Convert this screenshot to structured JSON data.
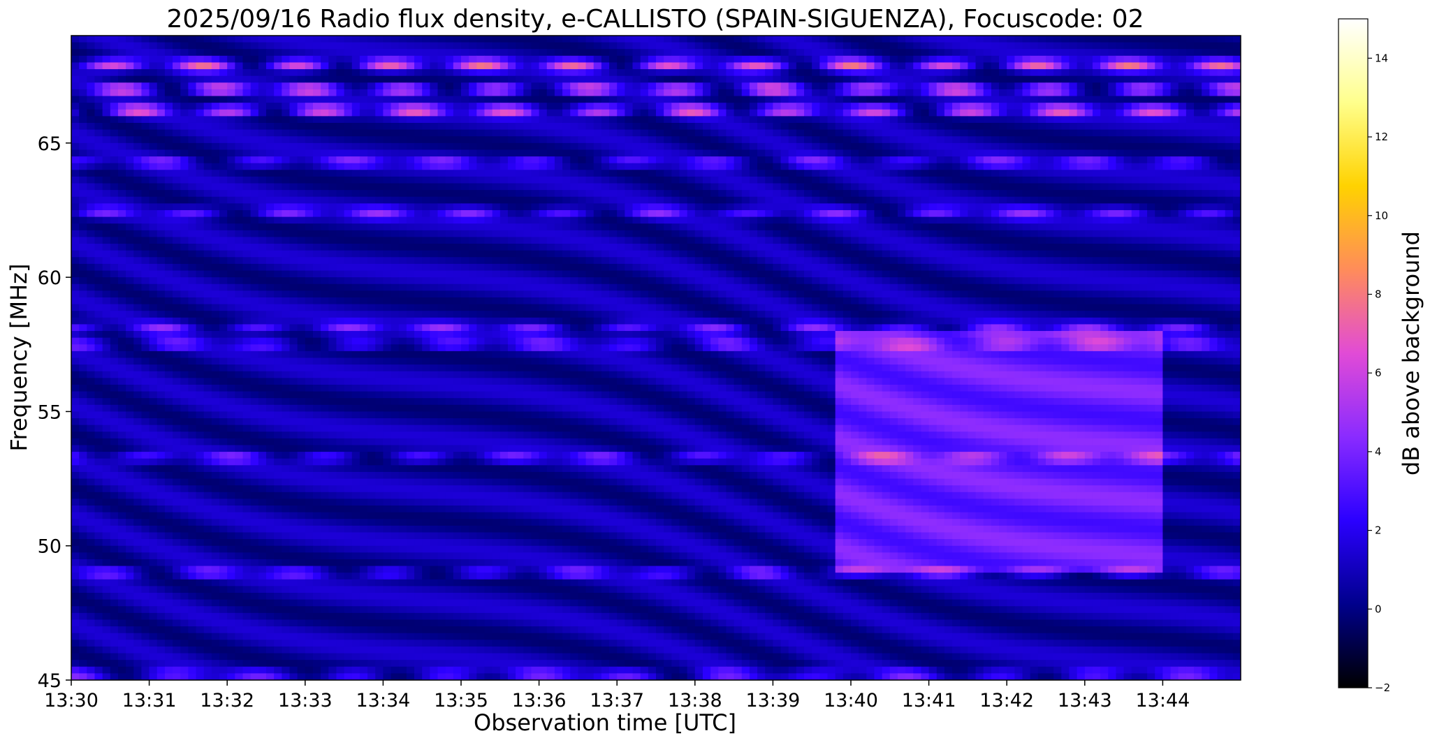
{
  "chart_data": {
    "type": "heatmap",
    "title": "2025/09/16  Radio flux density, e-CALLISTO (SPAIN-SIGUENZA), Focuscode: 02",
    "xlabel": "Observation time [UTC]",
    "ylabel": "Frequency [MHz]",
    "colorbar_label": "dB above background",
    "colormap": "gnuplot2",
    "x_ticks": [
      "13:30",
      "13:31",
      "13:32",
      "13:33",
      "13:34",
      "13:35",
      "13:36",
      "13:37",
      "13:38",
      "13:39",
      "13:40",
      "13:41",
      "13:42",
      "13:43",
      "13:44"
    ],
    "xlim": [
      "13:30:00",
      "13:45:00"
    ],
    "y_ticks": [
      45,
      50,
      55,
      60,
      65
    ],
    "ylim": [
      45,
      69
    ],
    "colorbar_ticks": [
      -2,
      0,
      2,
      4,
      6,
      8,
      10,
      12,
      14
    ],
    "colorbar_range": [
      -2,
      15
    ],
    "grid": false,
    "enhanced_band": {
      "start": "13:39:50",
      "end": "13:44:00",
      "freq_range": [
        49,
        58
      ],
      "level_db": 3
    },
    "emission_lanes_mhz": [
      45.2,
      49,
      53.3,
      57.5,
      58.1,
      62.4,
      64.3,
      66.2,
      67,
      67.9
    ]
  },
  "colors": {
    "colormap_stops": [
      "#000000",
      "#00008c",
      "#2b00ff",
      "#8a2bff",
      "#e14bd6",
      "#ff8c5a",
      "#ffd200",
      "#ffff8c",
      "#ffffff"
    ]
  }
}
